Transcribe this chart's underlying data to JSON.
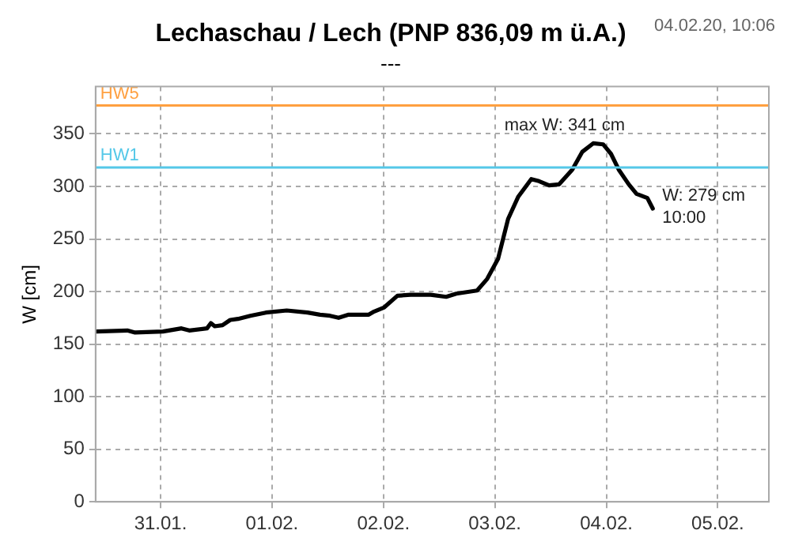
{
  "chart_data": {
    "type": "line",
    "title": "Lechaschau / Lech (PNP 836,09 m ü.A.)",
    "subtitle": "---",
    "ylabel": "W [cm]",
    "x": [
      "--01-30T10:10",
      "--01-30T16:50",
      "--01-30T18:30",
      "--01-31T00:30",
      "--01-31T04:30",
      "--01-31T06:10",
      "--01-31T10:00",
      "--01-31T10:50",
      "--01-31T11:40",
      "--01-31T13:20",
      "--01-31T15:00",
      "--01-31T16:40",
      "--01-31T19:20",
      "--01-31T22:40",
      "--02-01T03:10",
      "--02-01T07:40",
      "--02-01T10:20",
      "--02-01T12:30",
      "--02-01T14:20",
      "--02-01T16:30",
      "--02-01T20:50",
      "--02-01T22:00",
      "--02-02T00:10",
      "--02-02T03:00",
      "--02-02T05:50",
      "--02-02T10:10",
      "--02-02T13:30",
      "--02-02T15:40",
      "--02-02T20:10",
      "--02-02T22:20",
      "--02-03T00:40",
      "--02-03T02:50",
      "--02-03T05:00",
      "--02-03T07:50",
      "--02-03T09:30",
      "--02-03T11:40",
      "--02-03T13:50",
      "--02-03T16:40",
      "--02-03T18:50",
      "--02-03T21:10",
      "--02-03T23:20",
      "--02-04T01:00",
      "--02-04T02:40",
      "--02-04T04:50",
      "--02-04T06:30",
      "--02-04T08:50",
      "--02-04T10:00"
    ],
    "series": [
      {
        "color": "#000000",
        "values": [
          162,
          163,
          161,
          162,
          165,
          163,
          165,
          170,
          167,
          168,
          173,
          174,
          177,
          180,
          182,
          180,
          178,
          177,
          175,
          178,
          178,
          181,
          185,
          196,
          197,
          197,
          195,
          198,
          201,
          212,
          231,
          269,
          290,
          307,
          305,
          301,
          302,
          316,
          333,
          341,
          340,
          331,
          316,
          302,
          293,
          289,
          279
        ]
      }
    ],
    "xlim": [
      "--01-30T10:00",
      "--02-05T11:00"
    ],
    "xticks": [
      {
        "value": "--01-31",
        "label": "31.01."
      },
      {
        "value": "--02-01",
        "label": "01.02."
      },
      {
        "value": "--02-02",
        "label": "02.02."
      },
      {
        "value": "--02-03",
        "label": "03.02."
      },
      {
        "value": "--02-04",
        "label": "04.02."
      },
      {
        "value": "--02-05",
        "label": "05.02."
      }
    ],
    "ylim": [
      0,
      395
    ],
    "yticks": [
      0,
      50,
      100,
      150,
      200,
      250,
      300,
      350
    ],
    "grid": true,
    "legend": false,
    "marker": "none",
    "line_style": "solid",
    "ref_lines": [
      {
        "axis": "y",
        "value": 377,
        "label": "HW5",
        "color": "#ffa040"
      },
      {
        "axis": "y",
        "value": 318,
        "label": "HW1",
        "color": "#55c8e8"
      }
    ],
    "annotations": [
      "04.02.20, 10:06",
      {
        "text": "max W: 341 cm",
        "x": "--02-03T21:10",
        "y": 341
      },
      {
        "text": "W: 279 cm\n10:00",
        "x": "--02-04T10:00",
        "y": 279
      }
    ]
  }
}
